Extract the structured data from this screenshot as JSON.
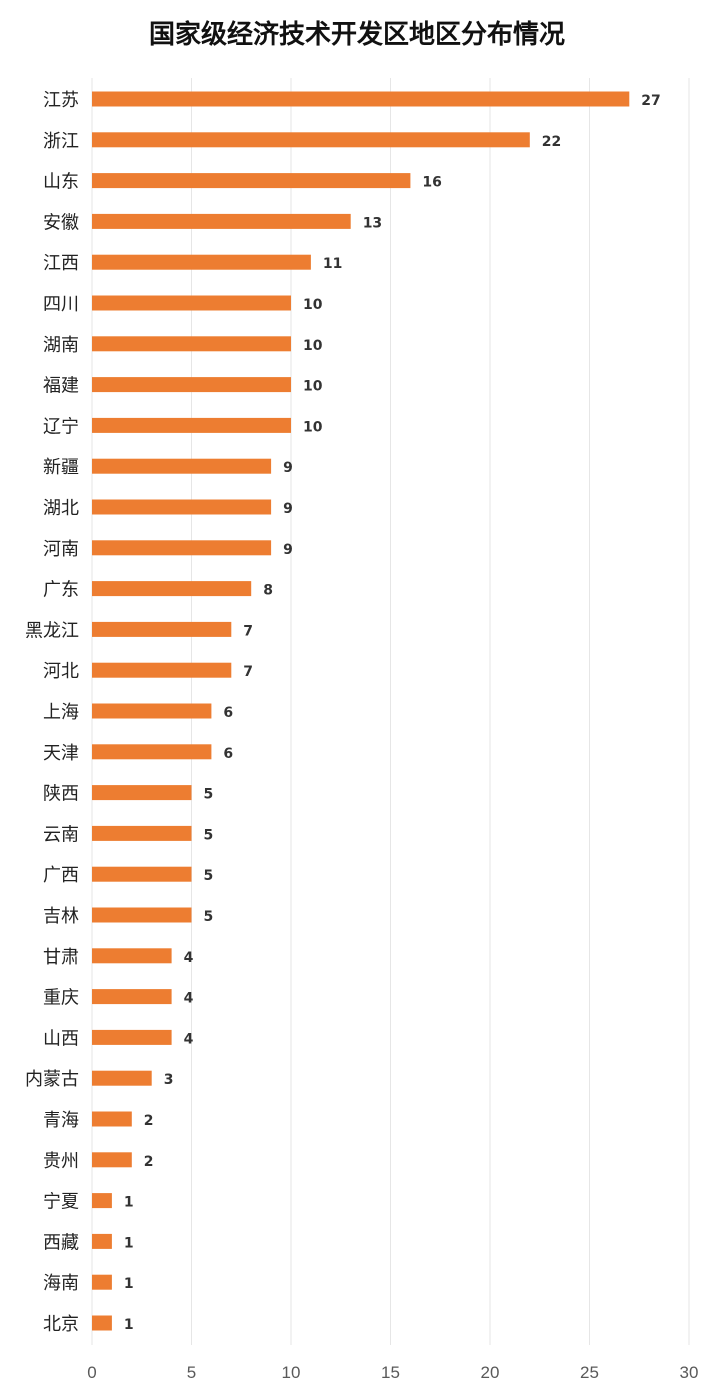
{
  "chart_data": {
    "type": "bar",
    "orientation": "horizontal",
    "title": "国家级经济技术开发区地区分布情况",
    "xlabel": "",
    "ylabel": "",
    "xlim": [
      0,
      30
    ],
    "x_ticks": [
      0,
      5,
      10,
      15,
      20,
      25,
      30
    ],
    "grid": true,
    "legend": "none",
    "bar_color": "#ED7D31",
    "data_labels": true,
    "categories": [
      "江苏",
      "浙江",
      "山东",
      "安徽",
      "江西",
      "四川",
      "湖南",
      "福建",
      "辽宁",
      "新疆",
      "湖北",
      "河南",
      "广东",
      "黑龙江",
      "河北",
      "上海",
      "天津",
      "陕西",
      "云南",
      "广西",
      "吉林",
      "甘肃",
      "重庆",
      "山西",
      "内蒙古",
      "青海",
      "贵州",
      "宁夏",
      "西藏",
      "海南",
      "北京"
    ],
    "values": [
      27,
      22,
      16,
      13,
      11,
      10,
      10,
      10,
      10,
      9,
      9,
      9,
      8,
      7,
      7,
      6,
      6,
      5,
      5,
      5,
      5,
      4,
      4,
      4,
      3,
      2,
      2,
      1,
      1,
      1,
      1
    ]
  }
}
